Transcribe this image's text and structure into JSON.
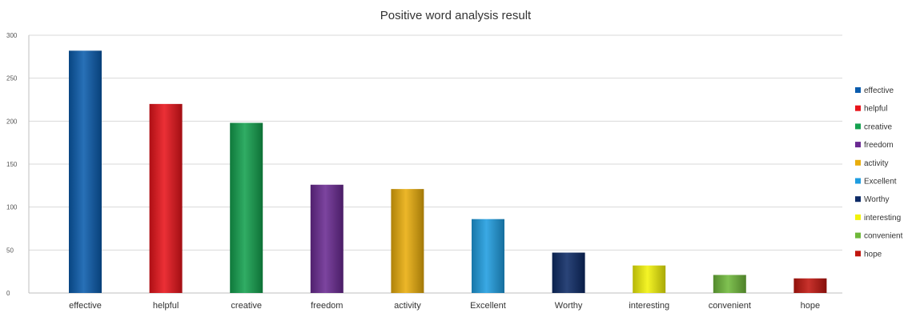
{
  "chart_data": {
    "type": "bar",
    "title": "Positive word analysis result",
    "xlabel": "",
    "ylabel": "",
    "ylim": [
      0,
      300
    ],
    "yticks": [
      0,
      50,
      100,
      150,
      200,
      250,
      300
    ],
    "grid": true,
    "legend_position": "right",
    "categories": [
      "effective",
      "helpful",
      "creative",
      "freedom",
      "activity",
      "Excellent",
      "Worthy",
      "interesting",
      "convenient",
      "hope"
    ],
    "values": [
      282,
      220,
      198,
      126,
      121,
      86,
      47,
      32,
      21,
      17
    ],
    "colors": [
      "#0b5cad",
      "#e8141b",
      "#14a14f",
      "#6a2a92",
      "#e9ad0c",
      "#1f9de0",
      "#0d2a66",
      "#f2f20a",
      "#6fb83a",
      "#c0160f"
    ]
  }
}
